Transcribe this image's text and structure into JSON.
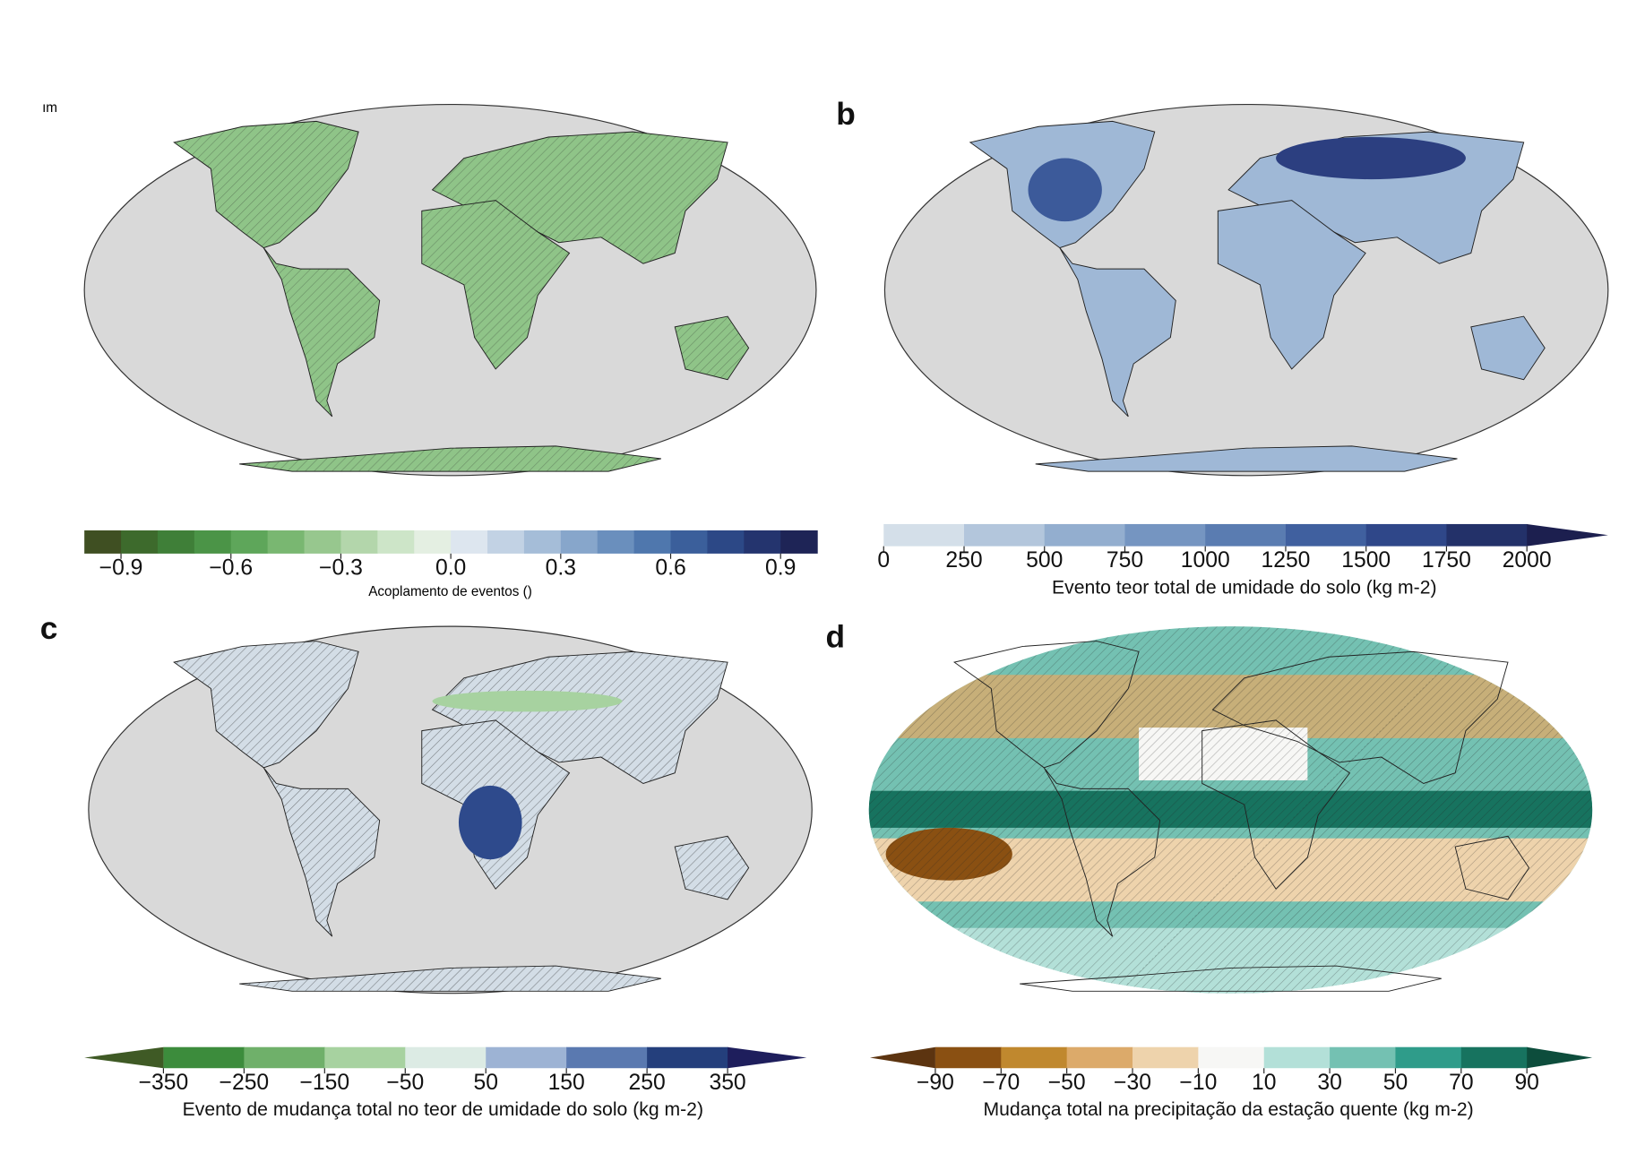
{
  "panels": [
    {
      "label": "ım",
      "colorbar": {
        "title": "Acoplamento de eventos ()",
        "lim": [
          -1,
          1
        ],
        "extend": "none",
        "ticks": [
          {
            "value": -0.9,
            "label": "−0.9"
          },
          {
            "value": -0.6,
            "label": "−0.6"
          },
          {
            "value": -0.3,
            "label": "−0.3"
          },
          {
            "value": 0,
            "label": "0.0"
          },
          0.3,
          0.6,
          0.9
        ],
        "colors": [
          "#3f4f22",
          "#3d6a2c",
          "#3f7f38",
          "#4b9447",
          "#5ea65a",
          "#79b771",
          "#97c78e",
          "#b3d6ab",
          "#cde5c8",
          "#e4efe2",
          "#dde6ef",
          "#c2d2e4",
          "#a5bdd8",
          "#87a6cb",
          "#6a8fbd",
          "#4f77ad",
          "#3b5f9b",
          "#2c4886",
          "#24346e",
          "#1e2456"
        ]
      }
    },
    {
      "label": "b",
      "colorbar": {
        "title": "Evento teor total de umidade do solo (kg m-2)",
        "lim": [
          0,
          2000
        ],
        "extend": "max",
        "ticks": [
          0,
          250,
          500,
          750,
          1000,
          1250,
          1500,
          1750,
          2000
        ],
        "colors": [
          "#d4dfe9",
          "#b3c6dc",
          "#93aecf",
          "#7595c1",
          "#5a7cb1",
          "#40609f",
          "#2f4789",
          "#233169"
        ],
        "over_color": "#1c1f4f"
      }
    },
    {
      "label": "c",
      "colorbar": {
        "title": "Evento de mudança total no teor de umidade do solo (kg m-2)",
        "lim": [
          -350,
          350
        ],
        "extend": "both",
        "ticks": [
          {
            "value": -350,
            "label": "−350"
          },
          {
            "value": -250,
            "label": "−250"
          },
          {
            "value": -150,
            "label": "−150"
          },
          {
            "value": -50,
            "label": "−50"
          },
          50,
          150,
          250,
          350
        ],
        "colors": [
          "#3c8c3c",
          "#6fb06a",
          "#a7d2a0",
          "#dcebe4",
          "#9db3d4",
          "#5a79b0",
          "#243f7c"
        ],
        "under_color": "#3f5a25",
        "over_color": "#1e1e5c"
      }
    },
    {
      "label": "d",
      "colorbar": {
        "title": "Mudança total na precipitação da estação quente (kg m-2)",
        "lim": [
          -90,
          90
        ],
        "extend": "both",
        "ticks": [
          {
            "value": -90,
            "label": "−90"
          },
          {
            "value": -70,
            "label": "−70"
          },
          {
            "value": -50,
            "label": "−50"
          },
          {
            "value": -30,
            "label": "−30"
          },
          {
            "value": -10,
            "label": "−10"
          },
          10,
          30,
          50,
          70,
          90
        ],
        "colors": [
          "#8a5012",
          "#c0882e",
          "#dcaa6a",
          "#eed3ac",
          "#f7f7f5",
          "#b3e0d8",
          "#74c1b2",
          "#2f9c8a",
          "#17735f"
        ],
        "under_color": "#5c3410",
        "over_color": "#0d4d3c"
      }
    }
  ]
}
